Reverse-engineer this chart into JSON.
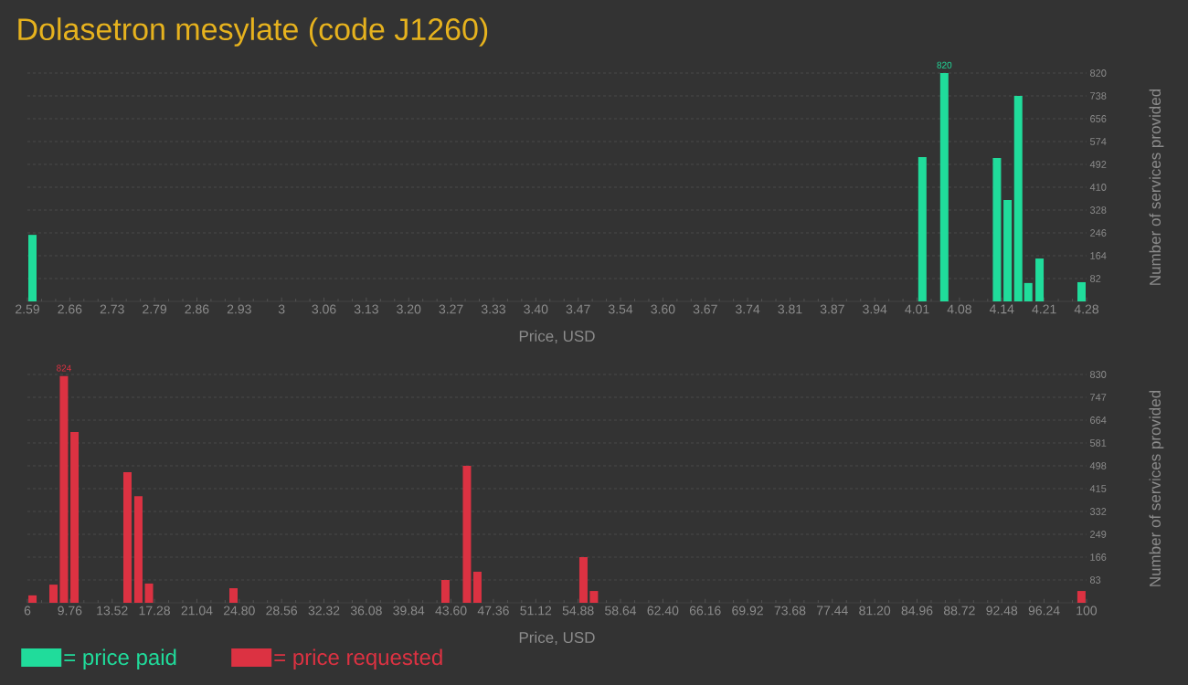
{
  "chart_data": [
    {
      "type": "bar",
      "title": "Dolasetron mesylate (code J1260)",
      "xlabel": "Price, USD",
      "ylabel": "Number of services provided",
      "x": [
        2.598,
        4.018,
        4.053,
        4.137,
        4.154,
        4.171,
        4.187,
        4.205,
        4.272
      ],
      "series": [
        {
          "name": "= price paid",
          "color": "#20dc9b",
          "values": [
            239,
            518,
            820,
            515,
            364,
            738,
            66,
            154,
            69
          ],
          "value_labels": [
            null,
            null,
            "820",
            null,
            null,
            null,
            null,
            null,
            null
          ]
        }
      ],
      "xlim": [
        2.59,
        4.28
      ],
      "xticks": [
        {
          "value": 2.59,
          "label": "2.59"
        },
        {
          "value": 2.6576,
          "label": "2.66"
        },
        {
          "value": 2.7252,
          "label": "2.73"
        },
        {
          "value": 2.7928,
          "label": "2.79"
        },
        {
          "value": 2.8604,
          "label": "2.86"
        },
        {
          "value": 2.928,
          "label": "2.93"
        },
        {
          "value": 2.9956,
          "label": "3"
        },
        {
          "value": 3.0632,
          "label": "3.06"
        },
        {
          "value": 3.1308,
          "label": "3.13"
        },
        {
          "value": 3.1984,
          "label": "3.20"
        },
        {
          "value": 3.266,
          "label": "3.27"
        },
        {
          "value": 3.3336,
          "label": "3.33"
        },
        {
          "value": 3.4012,
          "label": "3.40"
        },
        {
          "value": 3.4688,
          "label": "3.47"
        },
        {
          "value": 3.5364,
          "label": "3.54"
        },
        {
          "value": 3.604,
          "label": "3.60"
        },
        {
          "value": 3.6716,
          "label": "3.67"
        },
        {
          "value": 3.7392,
          "label": "3.74"
        },
        {
          "value": 3.8068,
          "label": "3.81"
        },
        {
          "value": 3.8744,
          "label": "3.87"
        },
        {
          "value": 3.942,
          "label": "3.94"
        },
        {
          "value": 4.0096,
          "label": "4.01"
        },
        {
          "value": 4.0772,
          "label": "4.08"
        },
        {
          "value": 4.1448,
          "label": "4.14"
        },
        {
          "value": 4.2124,
          "label": "4.21"
        },
        {
          "value": 4.28,
          "label": "4.28"
        }
      ],
      "ylim": [
        0,
        820
      ],
      "yticks": [
        82,
        164,
        246,
        328,
        410,
        492,
        574,
        656,
        738,
        820
      ],
      "grid": "y",
      "legend": "bottom left"
    },
    {
      "type": "bar",
      "xlabel": "Price, USD",
      "ylabel": "Number of services provided",
      "x": [
        6.45,
        8.31,
        9.24,
        10.18,
        14.88,
        15.85,
        16.79,
        24.29,
        43.1,
        45.01,
        45.94,
        55.35,
        56.28,
        99.55
      ],
      "series": [
        {
          "name": "= price requested",
          "color": "#dc3242",
          "values": [
            27,
            66,
            824,
            621,
            475,
            388,
            70,
            53,
            83,
            498,
            113,
            166,
            43,
            43
          ],
          "value_labels": [
            null,
            null,
            "824",
            null,
            null,
            null,
            null,
            null,
            null,
            null,
            null,
            null,
            null,
            null
          ]
        }
      ],
      "xlim": [
        6,
        100
      ],
      "xticks": [
        6,
        {
          "value": 9.76,
          "label": "9.76"
        },
        {
          "value": 13.52,
          "label": "13.52"
        },
        {
          "value": 17.28,
          "label": "17.28"
        },
        {
          "value": 21.04,
          "label": "21.04"
        },
        {
          "value": 24.8,
          "label": "24.80"
        },
        {
          "value": 28.56,
          "label": "28.56"
        },
        {
          "value": 32.32,
          "label": "32.32"
        },
        {
          "value": 36.08,
          "label": "36.08"
        },
        {
          "value": 39.84,
          "label": "39.84"
        },
        {
          "value": 43.6,
          "label": "43.60"
        },
        {
          "value": 47.36,
          "label": "47.36"
        },
        {
          "value": 51.12,
          "label": "51.12"
        },
        {
          "value": 54.88,
          "label": "54.88"
        },
        {
          "value": 58.64,
          "label": "58.64"
        },
        {
          "value": 62.4,
          "label": "62.40"
        },
        {
          "value": 66.16,
          "label": "66.16"
        },
        {
          "value": 69.92,
          "label": "69.92"
        },
        {
          "value": 73.68,
          "label": "73.68"
        },
        {
          "value": 77.44,
          "label": "77.44"
        },
        {
          "value": 81.2,
          "label": "81.20"
        },
        {
          "value": 84.96,
          "label": "84.96"
        },
        {
          "value": 88.72,
          "label": "88.72"
        },
        {
          "value": 92.48,
          "label": "92.48"
        },
        {
          "value": 96.24,
          "label": "96.24"
        },
        100
      ],
      "ylim": [
        0,
        830
      ],
      "yticks": [
        83,
        166,
        249,
        332,
        415,
        498,
        581,
        664,
        747,
        830
      ],
      "grid": "y",
      "legend": "bottom left"
    }
  ]
}
